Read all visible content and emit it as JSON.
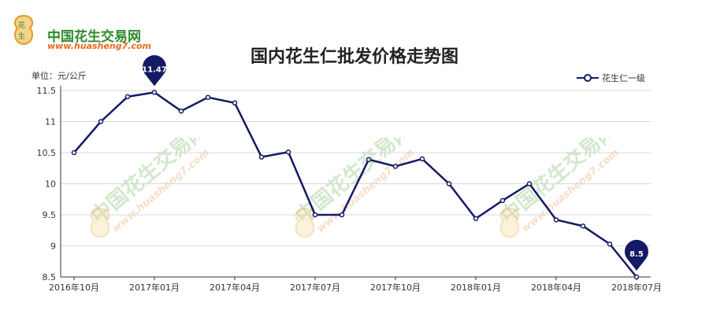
{
  "logo": {
    "name": "中国花生交易网",
    "url": "www.huasheng7.com"
  },
  "watermark": {
    "name": "中国花生交易网",
    "url": "www.huasheng7.com"
  },
  "chart_data": {
    "type": "line",
    "title": "国内花生仁批发价格走势图",
    "ylabel": "单位：元/公斤",
    "ylim": [
      8.5,
      11.5
    ],
    "yticks": [
      "8.5",
      "9",
      "9.5",
      "10",
      "10.5",
      "11",
      "11.5"
    ],
    "xtick_labels": [
      "2016年10月",
      "2017年01月",
      "2017年04月",
      "2017年07月",
      "2017年10月",
      "2018年01月",
      "2018年04月",
      "2018年07月"
    ],
    "x": [
      "2016-10",
      "2016-11",
      "2016-12",
      "2017-01",
      "2017-02",
      "2017-03",
      "2017-04",
      "2017-05",
      "2017-06",
      "2017-07",
      "2017-08",
      "2017-09",
      "2017-10",
      "2017-11",
      "2017-12",
      "2018-01",
      "2018-02",
      "2018-03",
      "2018-04",
      "2018-05",
      "2018-06",
      "2018-07"
    ],
    "series": [
      {
        "name": "花生仁一级",
        "color": "#141a66",
        "values": [
          10.5,
          11.0,
          11.4,
          11.47,
          11.17,
          11.39,
          11.3,
          10.43,
          10.51,
          9.5,
          9.5,
          10.39,
          10.28,
          10.4,
          10.0,
          9.44,
          9.73,
          10.0,
          9.42,
          9.32,
          9.03,
          8.5
        ]
      }
    ],
    "markers": [
      {
        "label": "11.47",
        "x": "2017-01",
        "value": 11.47
      },
      {
        "label": "8.5",
        "x": "2018-07",
        "value": 8.5
      }
    ],
    "grid": true,
    "legend": "top-right"
  }
}
